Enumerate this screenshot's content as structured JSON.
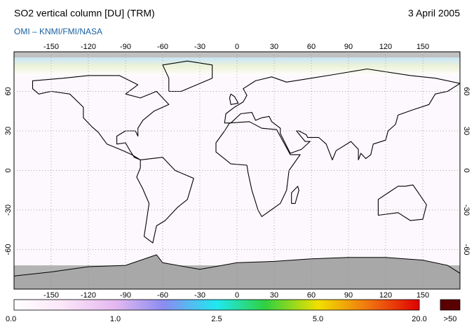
{
  "header": {
    "title": "SO2 vertical column [DU] (TRM)",
    "date": "3 April 2005",
    "subtitle": "OMI  –  KNMI/FMI/NASA"
  },
  "map": {
    "lon_ticks": [
      -150,
      -120,
      -90,
      -60,
      -30,
      0,
      30,
      60,
      90,
      120,
      150
    ],
    "lat_ticks": [
      -60,
      -30,
      0,
      30,
      60
    ]
  },
  "colorbar": {
    "labels": [
      "0.0",
      "1.0",
      "2.5",
      "5.0",
      "20.0"
    ],
    "overflow_label": ">50"
  }
}
